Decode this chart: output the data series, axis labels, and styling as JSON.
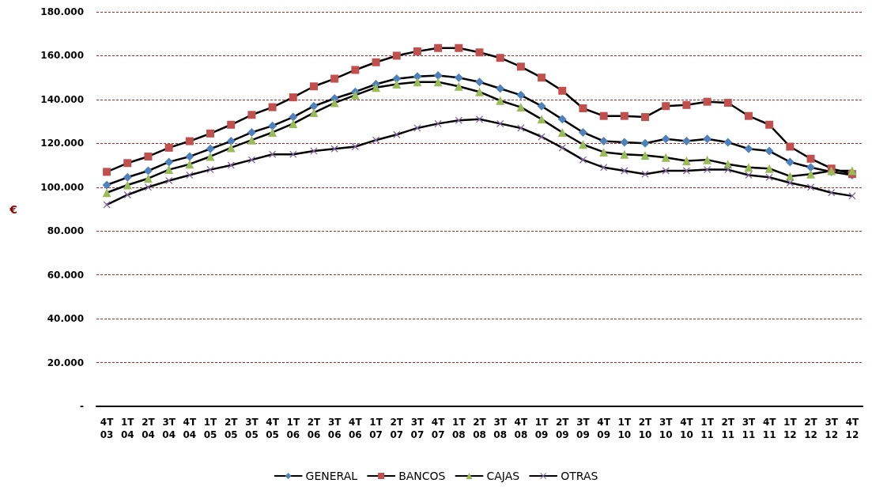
{
  "chart_data": {
    "type": "line",
    "ylabel": "€",
    "categories": [
      "4T\n03",
      "1T\n04",
      "2T\n04",
      "3T\n04",
      "4T\n04",
      "1T\n05",
      "2T\n05",
      "3T\n05",
      "4T\n05",
      "1T\n06",
      "2T\n06",
      "3T\n06",
      "4T\n06",
      "1T\n07",
      "2T\n07",
      "3T\n07",
      "4T\n07",
      "1T\n08",
      "2T\n08",
      "3T\n08",
      "4T\n08",
      "1T\n09",
      "2T\n09",
      "3T\n09",
      "4T\n09",
      "1T\n10",
      "2T\n10",
      "3T\n10",
      "4T\n10",
      "1T\n11",
      "2T\n11",
      "3T\n11",
      "4T\n11",
      "1T\n12",
      "2T\n12",
      "3T\n12",
      "4T\n12"
    ],
    "series": [
      {
        "name": "GENERAL",
        "color": "#4f81bd",
        "marker": "diamond",
        "values": [
          101000,
          104500,
          107500,
          111500,
          114000,
          117500,
          121000,
          125000,
          128000,
          132000,
          137000,
          140500,
          143500,
          147000,
          149500,
          150500,
          151000,
          150000,
          148000,
          145000,
          142000,
          137000,
          131000,
          125000,
          121000,
          120500,
          120000,
          122000,
          121000,
          122000,
          120500,
          117500,
          116500,
          111500,
          109000,
          107000,
          105500
        ]
      },
      {
        "name": "BANCOS",
        "color": "#c0504d",
        "marker": "square",
        "values": [
          107000,
          111000,
          114000,
          118000,
          121000,
          124500,
          128500,
          133000,
          136500,
          141000,
          146000,
          149500,
          153500,
          157000,
          160000,
          162000,
          163500,
          163500,
          161500,
          159000,
          155000,
          150000,
          144000,
          136000,
          132500,
          132500,
          132000,
          137000,
          137500,
          139000,
          138500,
          132500,
          128500,
          118500,
          113000,
          108500,
          106000
        ]
      },
      {
        "name": "CAJAS",
        "color": "#9bbb59",
        "marker": "triangle",
        "values": [
          97500,
          101000,
          104000,
          108000,
          110500,
          114000,
          118000,
          121500,
          125000,
          129000,
          134000,
          138500,
          142000,
          145500,
          147000,
          148000,
          148000,
          146000,
          143500,
          139500,
          136500,
          131000,
          125000,
          119500,
          116000,
          115000,
          114500,
          113500,
          112000,
          112500,
          110500,
          109000,
          108500,
          105000,
          106000,
          107500,
          107500
        ]
      },
      {
        "name": "OTRAS",
        "color": "#8064a2",
        "marker": "cross",
        "values": [
          92000,
          96500,
          100000,
          103000,
          105500,
          108000,
          110000,
          112500,
          115000,
          115000,
          116500,
          117500,
          118500,
          121500,
          124000,
          127000,
          129000,
          130500,
          131000,
          129000,
          127000,
          123000,
          118000,
          112500,
          109000,
          107500,
          106000,
          107500,
          107500,
          108000,
          108000,
          105500,
          104500,
          102000,
          100000,
          97500,
          96000
        ]
      }
    ],
    "ylim": [
      0,
      180000
    ],
    "yticks": [
      {
        "value": 0,
        "label": "-"
      },
      {
        "value": 20000,
        "label": "20.000"
      },
      {
        "value": 40000,
        "label": "40.000"
      },
      {
        "value": 60000,
        "label": "60.000"
      },
      {
        "value": 80000,
        "label": "80.000"
      },
      {
        "value": 100000,
        "label": "100.000"
      },
      {
        "value": 120000,
        "label": "120.000"
      },
      {
        "value": 140000,
        "label": "140.000"
      },
      {
        "value": 160000,
        "label": "160.000"
      },
      {
        "value": 180000,
        "label": "180.000"
      }
    ],
    "grid": "y",
    "legend": "bottom",
    "line_style": "solid"
  }
}
